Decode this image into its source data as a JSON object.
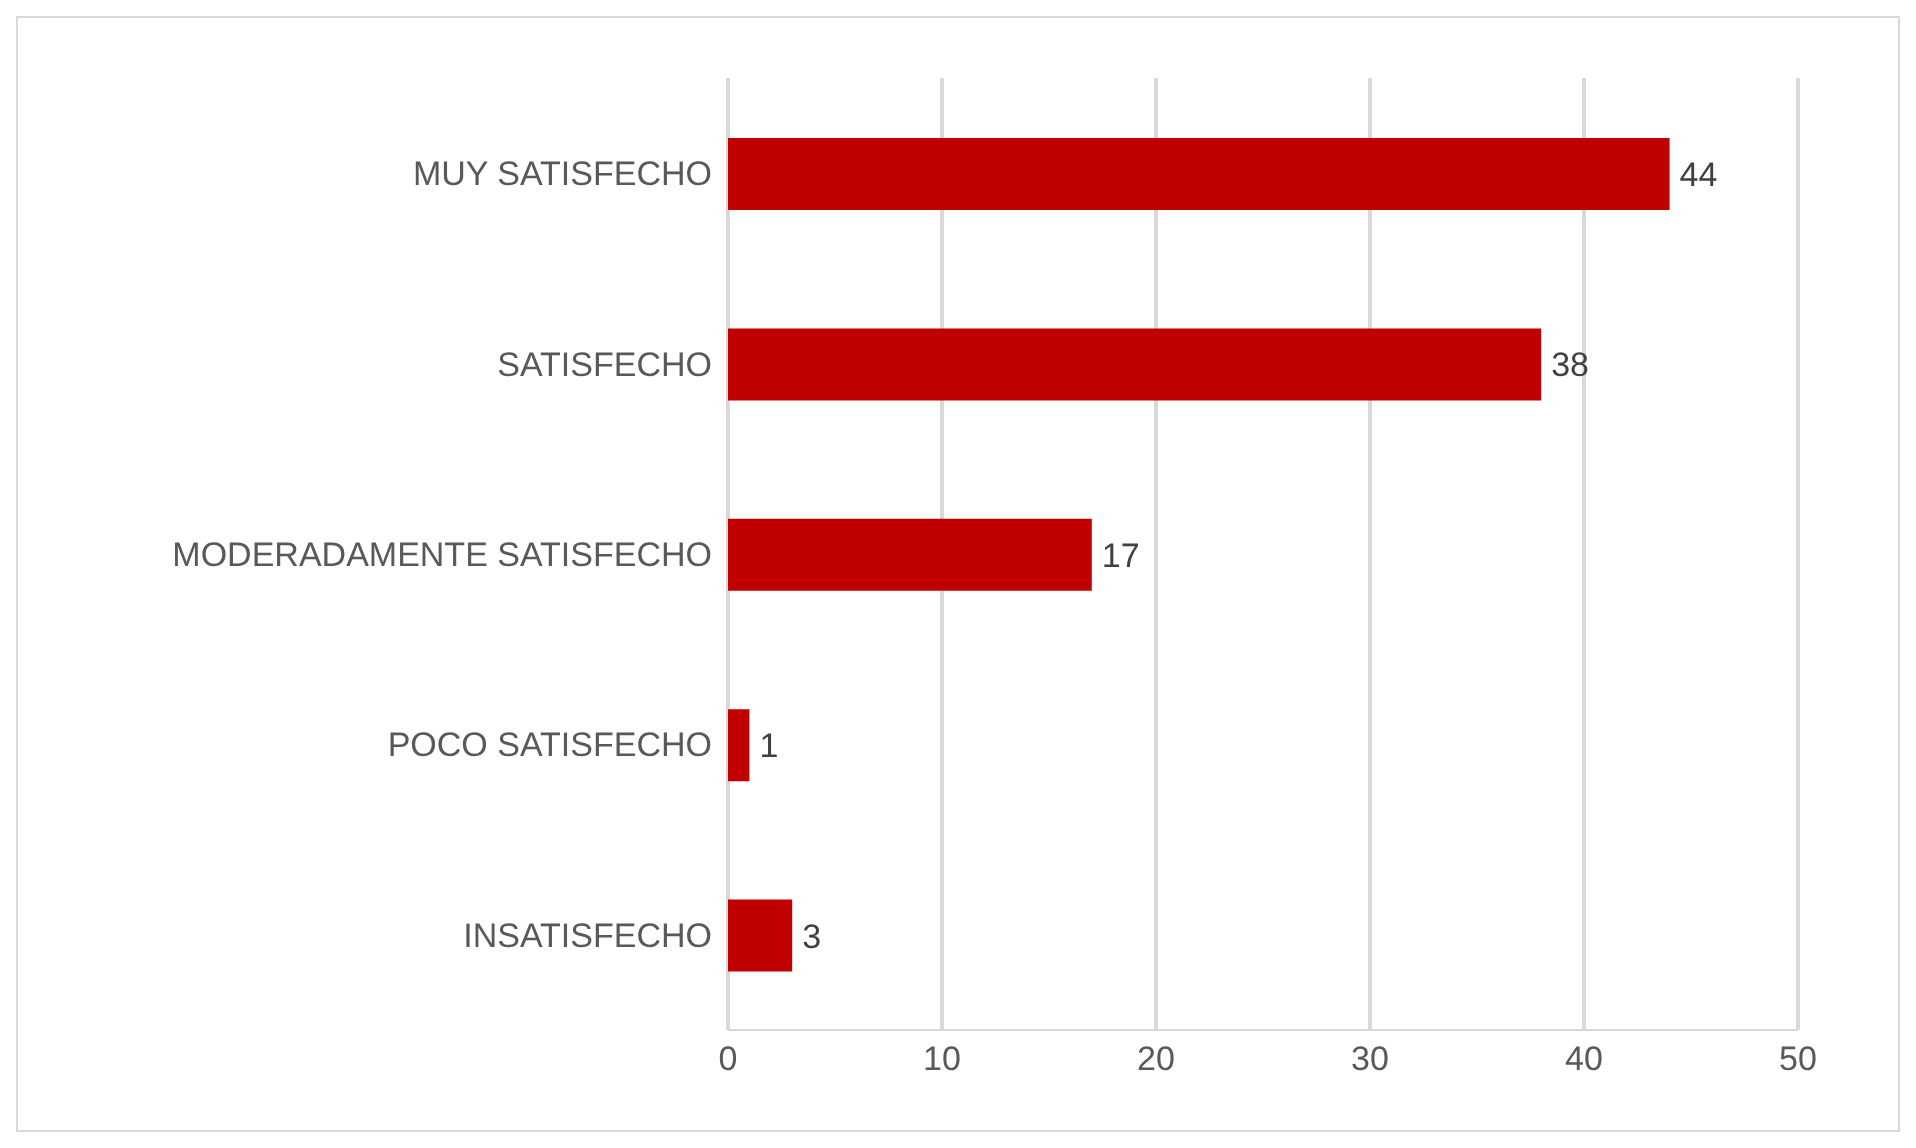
{
  "chart_data": {
    "type": "bar",
    "orientation": "horizontal",
    "categories": [
      "MUY SATISFECHO",
      "SATISFECHO",
      "MODERADAMENTE SATISFECHO",
      "POCO SATISFECHO",
      "INSATISFECHO"
    ],
    "values": [
      44,
      38,
      17,
      1,
      3
    ],
    "color": "#c00000",
    "xlim": [
      0,
      50
    ],
    "xticks": [
      0,
      10,
      20,
      30,
      40,
      50
    ],
    "grid": "x",
    "data_labels": true
  }
}
